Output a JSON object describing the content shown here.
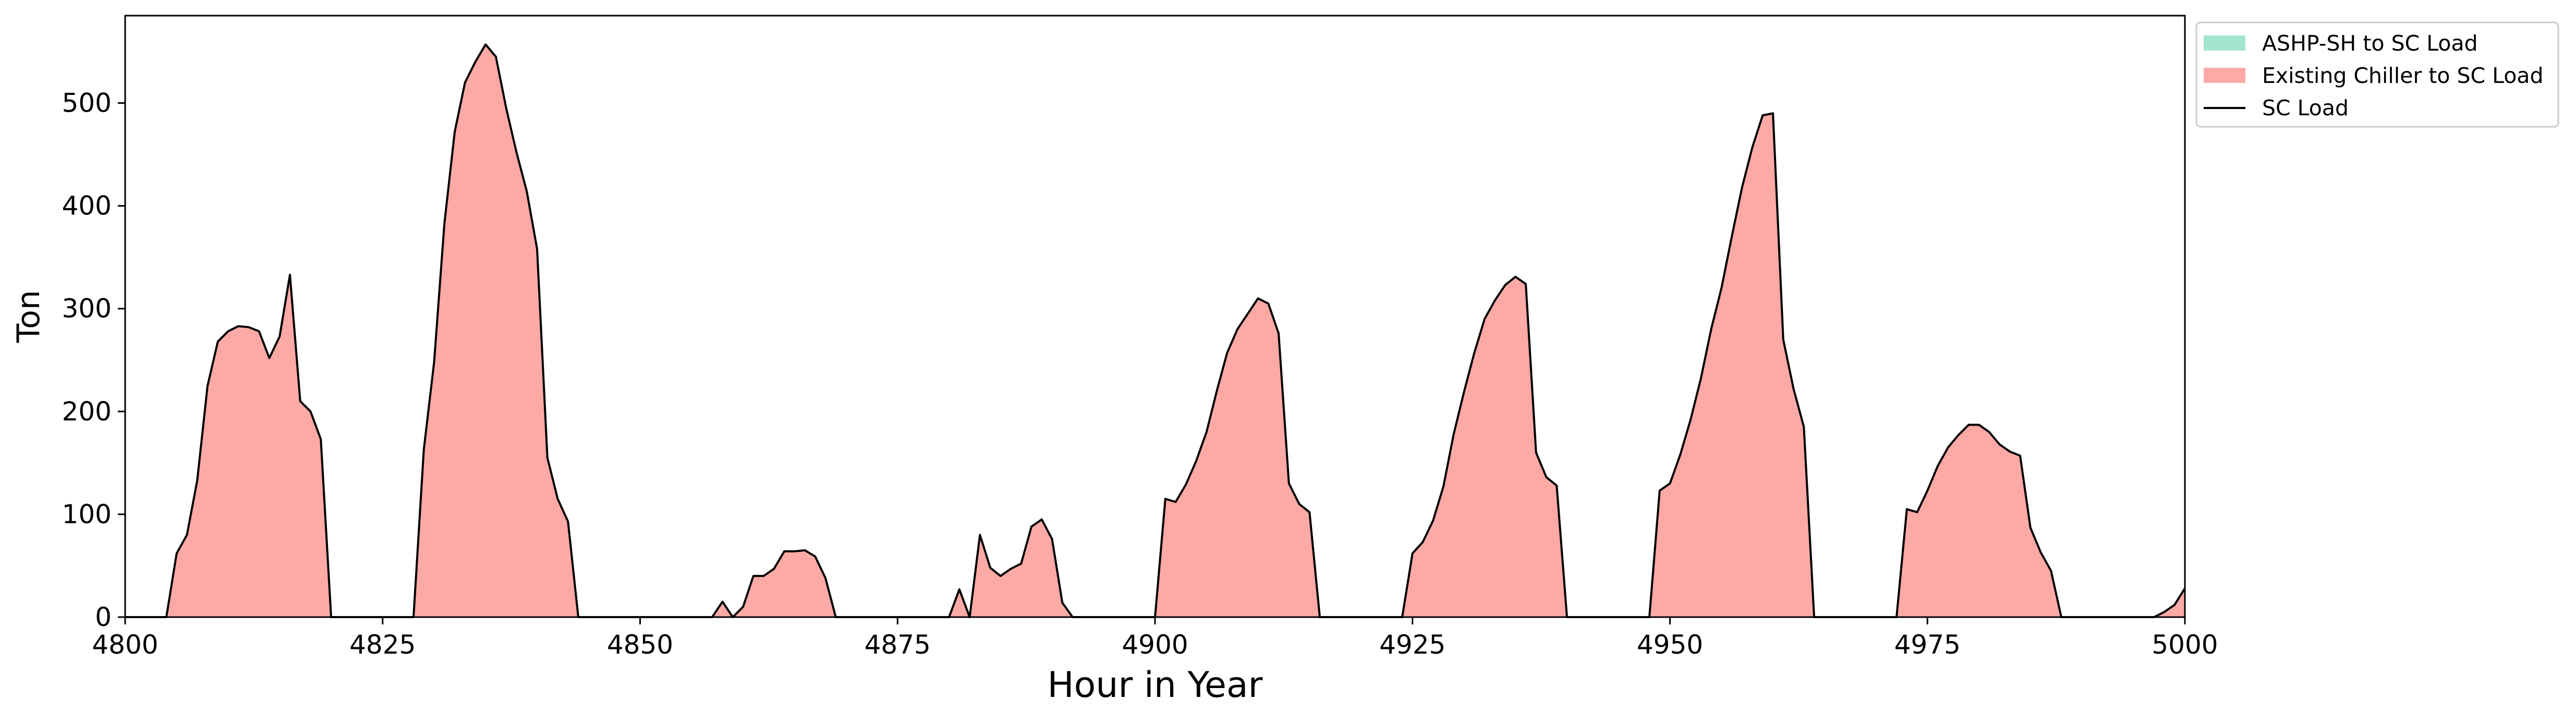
{
  "chart_data": {
    "type": "area",
    "title": "",
    "xlabel": "Hour in Year",
    "ylabel": "Ton",
    "xlim": [
      4800,
      5000
    ],
    "ylim": [
      0,
      585
    ],
    "x_ticks": [
      4800,
      4825,
      4850,
      4875,
      4900,
      4925,
      4950,
      4975,
      5000
    ],
    "y_ticks": [
      0,
      100,
      200,
      300,
      400,
      500
    ],
    "grid": false,
    "legend_position": "outside-top-right",
    "legend": [
      {
        "label": "ASHP-SH to SC Load",
        "kind": "patch",
        "color": "#a3e4d0"
      },
      {
        "label": "Existing Chiller to SC Load",
        "kind": "patch",
        "color": "#fda9a5"
      },
      {
        "label": "SC Load",
        "kind": "line",
        "color": "#000000"
      }
    ],
    "series": [
      {
        "name": "ASHP-SH to SC Load",
        "style": "stacked-area",
        "color": "#a3e4d0",
        "values": "zero"
      },
      {
        "name": "Existing Chiller to SC Load",
        "style": "stacked-area",
        "color": "#fda9a5",
        "values": "same as SC Load"
      },
      {
        "name": "SC Load",
        "style": "line",
        "color": "#000000",
        "points": [
          [
            4800,
            0
          ],
          [
            4804,
            0
          ],
          [
            4805,
            62
          ],
          [
            4806,
            80
          ],
          [
            4807,
            133
          ],
          [
            4808,
            225
          ],
          [
            4809,
            268
          ],
          [
            4810,
            278
          ],
          [
            4811,
            283
          ],
          [
            4812,
            282
          ],
          [
            4813,
            278
          ],
          [
            4814,
            252
          ],
          [
            4815,
            273
          ],
          [
            4816,
            333
          ],
          [
            4817,
            210
          ],
          [
            4818,
            200
          ],
          [
            4819,
            173
          ],
          [
            4820,
            0
          ],
          [
            4828,
            0
          ],
          [
            4829,
            163
          ],
          [
            4830,
            248
          ],
          [
            4831,
            383
          ],
          [
            4832,
            472
          ],
          [
            4833,
            520
          ],
          [
            4834,
            540
          ],
          [
            4835,
            557
          ],
          [
            4836,
            545
          ],
          [
            4837,
            495
          ],
          [
            4838,
            452
          ],
          [
            4839,
            414
          ],
          [
            4840,
            358
          ],
          [
            4841,
            155
          ],
          [
            4842,
            115
          ],
          [
            4843,
            93
          ],
          [
            4844,
            0
          ],
          [
            4857,
            0
          ],
          [
            4858,
            15
          ],
          [
            4859,
            0
          ],
          [
            4860,
            10
          ],
          [
            4861,
            40
          ],
          [
            4862,
            40
          ],
          [
            4863,
            47
          ],
          [
            4864,
            64
          ],
          [
            4865,
            64
          ],
          [
            4866,
            65
          ],
          [
            4867,
            59
          ],
          [
            4868,
            38
          ],
          [
            4869,
            0
          ],
          [
            4880,
            0
          ],
          [
            4881,
            27
          ],
          [
            4882,
            0
          ],
          [
            4883,
            80
          ],
          [
            4884,
            48
          ],
          [
            4885,
            40
          ],
          [
            4886,
            47
          ],
          [
            4887,
            52
          ],
          [
            4888,
            88
          ],
          [
            4889,
            95
          ],
          [
            4890,
            76
          ],
          [
            4891,
            14
          ],
          [
            4892,
            0
          ],
          [
            4900,
            0
          ],
          [
            4901,
            115
          ],
          [
            4902,
            112
          ],
          [
            4903,
            129
          ],
          [
            4904,
            152
          ],
          [
            4905,
            180
          ],
          [
            4906,
            220
          ],
          [
            4907,
            257
          ],
          [
            4908,
            280
          ],
          [
            4909,
            295
          ],
          [
            4910,
            310
          ],
          [
            4911,
            305
          ],
          [
            4912,
            276
          ],
          [
            4913,
            130
          ],
          [
            4914,
            110
          ],
          [
            4915,
            102
          ],
          [
            4916,
            0
          ],
          [
            4924,
            0
          ],
          [
            4925,
            62
          ],
          [
            4926,
            73
          ],
          [
            4927,
            94
          ],
          [
            4928,
            127
          ],
          [
            4929,
            178
          ],
          [
            4930,
            219
          ],
          [
            4931,
            257
          ],
          [
            4932,
            290
          ],
          [
            4933,
            308
          ],
          [
            4934,
            323
          ],
          [
            4935,
            331
          ],
          [
            4936,
            324
          ],
          [
            4937,
            160
          ],
          [
            4938,
            136
          ],
          [
            4939,
            128
          ],
          [
            4940,
            0
          ],
          [
            4948,
            0
          ],
          [
            4949,
            123
          ],
          [
            4950,
            130
          ],
          [
            4951,
            158
          ],
          [
            4952,
            192
          ],
          [
            4953,
            232
          ],
          [
            4954,
            280
          ],
          [
            4955,
            320
          ],
          [
            4956,
            370
          ],
          [
            4957,
            418
          ],
          [
            4958,
            457
          ],
          [
            4959,
            488
          ],
          [
            4960,
            490
          ],
          [
            4961,
            270
          ],
          [
            4962,
            222
          ],
          [
            4963,
            185
          ],
          [
            4964,
            0
          ],
          [
            4972,
            0
          ],
          [
            4973,
            105
          ],
          [
            4974,
            102
          ],
          [
            4975,
            123
          ],
          [
            4976,
            147
          ],
          [
            4977,
            165
          ],
          [
            4978,
            177
          ],
          [
            4979,
            187
          ],
          [
            4980,
            187
          ],
          [
            4981,
            180
          ],
          [
            4982,
            168
          ],
          [
            4983,
            161
          ],
          [
            4984,
            157
          ],
          [
            4985,
            87
          ],
          [
            4986,
            63
          ],
          [
            4987,
            45
          ],
          [
            4988,
            0
          ],
          [
            4997,
            0
          ],
          [
            4998,
            5
          ],
          [
            4999,
            12
          ],
          [
            5000,
            28
          ]
        ]
      }
    ]
  }
}
